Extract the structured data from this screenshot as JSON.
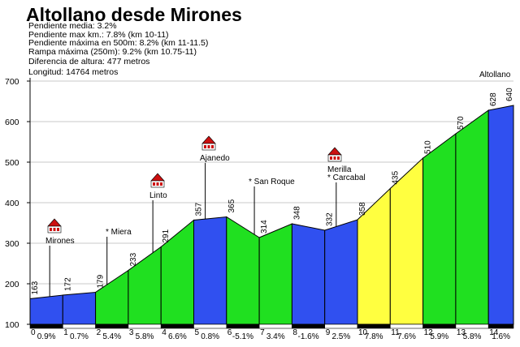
{
  "title": "Altollano desde Mirones",
  "stats": [
    "Pendiente media: 3.2%",
    "Pendiente max km.: 7.8% (km 10-11)",
    "Pendiente máxima en 500m: 8.2% (km 11-11.5)",
    "Rampa máxima (250m): 9.2% (km 10.75-11)",
    "Diferencia de altura: 477 metros",
    "Longitud: 14764 metros"
  ],
  "chart_data": {
    "type": "area",
    "xlim": [
      0,
      14.764
    ],
    "ylim": [
      100,
      700
    ],
    "y_ticks": [
      100,
      200,
      300,
      400,
      500,
      600,
      700
    ],
    "x_ticks": [
      "0",
      "1",
      "2",
      "3",
      "4",
      "5",
      "6",
      "7",
      "8",
      "9",
      "10",
      "11",
      "12",
      "13",
      "14"
    ],
    "profile": [
      {
        "km": 0,
        "alt": 163
      },
      {
        "km": 1,
        "alt": 172
      },
      {
        "km": 2,
        "alt": 179
      },
      {
        "km": 3,
        "alt": 233
      },
      {
        "km": 4,
        "alt": 291
      },
      {
        "km": 5,
        "alt": 357
      },
      {
        "km": 6,
        "alt": 365
      },
      {
        "km": 7,
        "alt": 314
      },
      {
        "km": 8,
        "alt": 348
      },
      {
        "km": 9,
        "alt": 332
      },
      {
        "km": 10,
        "alt": 358
      },
      {
        "km": 11,
        "alt": 435
      },
      {
        "km": 12,
        "alt": 510
      },
      {
        "km": 13,
        "alt": 570
      },
      {
        "km": 14,
        "alt": 628
      },
      {
        "km": 14.764,
        "alt": 640
      }
    ],
    "segments": [
      {
        "grade": "0.9%",
        "color": "#3050f0"
      },
      {
        "grade": "0.7%",
        "color": "#3050f0"
      },
      {
        "grade": "5.4%",
        "color": "#20e020"
      },
      {
        "grade": "5.8%",
        "color": "#20e020"
      },
      {
        "grade": "6.6%",
        "color": "#20e020"
      },
      {
        "grade": "0.8%",
        "color": "#3050f0"
      },
      {
        "grade": "-5.1%",
        "color": "#20e020"
      },
      {
        "grade": "3.4%",
        "color": "#20e020"
      },
      {
        "grade": "-1.6%",
        "color": "#3050f0"
      },
      {
        "grade": "2.5%",
        "color": "#3050f0"
      },
      {
        "grade": "7.8%",
        "color": "#ffff40"
      },
      {
        "grade": "7.6%",
        "color": "#ffff40"
      },
      {
        "grade": "5.9%",
        "color": "#20e020"
      },
      {
        "grade": "5.8%",
        "color": "#20e020"
      },
      {
        "grade": "1.6%",
        "color": "#3050f0"
      }
    ],
    "places": [
      {
        "name": "Mirones",
        "km": 0.6,
        "icon": true
      },
      {
        "name": "* Miera",
        "km": 2.35,
        "icon": false
      },
      {
        "name": "Linto",
        "km": 3.75,
        "icon": true
      },
      {
        "name": "Ajanedo",
        "km": 5.35,
        "icon": true
      },
      {
        "name": "* San Roque",
        "km": 6.85,
        "icon": false
      },
      {
        "name": "Merilla",
        "km": 9.35,
        "icon": true
      },
      {
        "name": "* Carcabal",
        "km": 9.35,
        "icon": false
      },
      {
        "name": "Altollano",
        "km": 14.35,
        "icon": false
      }
    ]
  }
}
